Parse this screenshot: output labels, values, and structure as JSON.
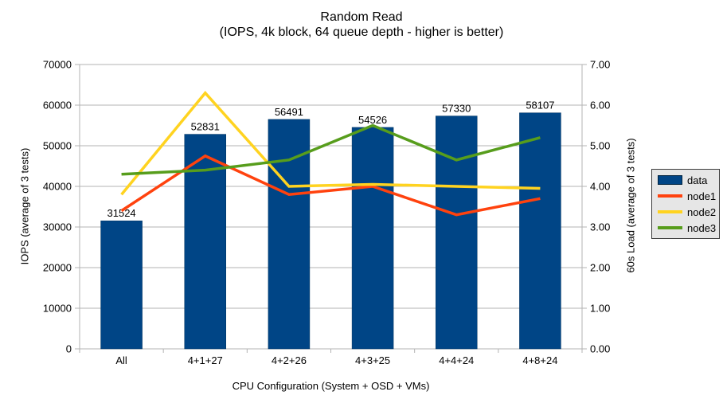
{
  "chart_data": {
    "type": "bar+line",
    "title": "Random Read",
    "subtitle": "(IOPS, 4k block, 64 queue depth - higher is better)",
    "xlabel": "CPU Configuration (System + OSD + VMs)",
    "ylabel_left": "IOPS (average of 3 tests)",
    "ylabel_right": "60s Load (average of 3 tests)",
    "categories": [
      "All",
      "4+1+27",
      "4+2+26",
      "4+3+25",
      "4+4+24",
      "4+8+24"
    ],
    "bar_series": {
      "name": "data",
      "axis": "left",
      "color": "#004586",
      "values": [
        31524,
        52831,
        56491,
        54526,
        57330,
        58107
      ],
      "value_labels": [
        "31524",
        "52831",
        "56491",
        "54526",
        "57330",
        "58107"
      ]
    },
    "line_series": [
      {
        "name": "node1",
        "axis": "right",
        "color": "#FF420E",
        "values": [
          3.4,
          4.75,
          3.8,
          4.0,
          3.3,
          3.7
        ]
      },
      {
        "name": "node2",
        "axis": "right",
        "color": "#FFD320",
        "values": [
          3.8,
          6.3,
          4.0,
          4.05,
          4.0,
          3.95
        ]
      },
      {
        "name": "node3",
        "axis": "right",
        "color": "#579D1C",
        "values": [
          4.3,
          4.4,
          4.65,
          5.5,
          4.65,
          5.2
        ]
      }
    ],
    "left_axis": {
      "min": 0,
      "max": 70000,
      "tick_labels": [
        "0",
        "10000",
        "20000",
        "30000",
        "40000",
        "50000",
        "60000",
        "70000"
      ]
    },
    "right_axis": {
      "min": 0,
      "max": 7,
      "tick_labels": [
        "0.00",
        "1.00",
        "2.00",
        "3.00",
        "4.00",
        "5.00",
        "6.00",
        "7.00"
      ]
    },
    "legend": {
      "position": "right",
      "items": [
        {
          "label": "data",
          "color": "#004586",
          "type": "box"
        },
        {
          "label": "node1",
          "color": "#FF420E",
          "type": "line"
        },
        {
          "label": "node2",
          "color": "#FFD320",
          "type": "line"
        },
        {
          "label": "node3",
          "color": "#579D1C",
          "type": "line"
        }
      ]
    },
    "grid": "horizontal",
    "colors": {
      "gridline": "#B3B3B3",
      "axis": "#B3B3B3",
      "text": "#000000",
      "bar_border": "#00325E",
      "legend_bg": "#E6E6E6",
      "legend_border": "#3C3C3C",
      "background": "#FFFFFF"
    }
  }
}
